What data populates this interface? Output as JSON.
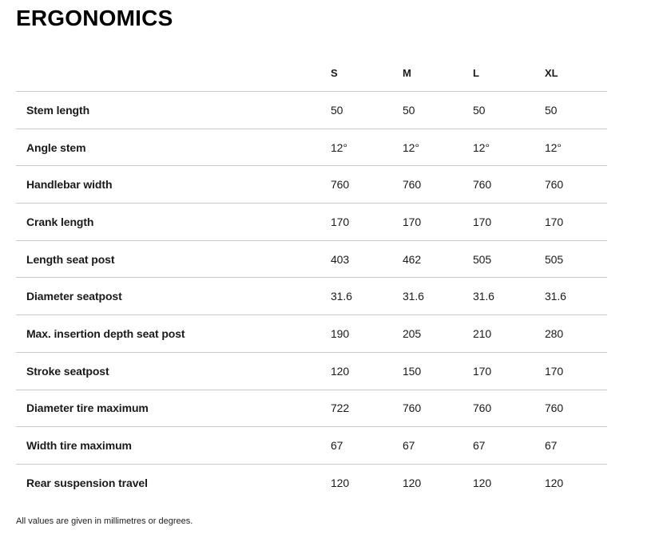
{
  "page": {
    "title": "ERGONOMICS",
    "footnote": "All values are given in millimetres or degrees."
  },
  "table": {
    "columns": [
      "S",
      "M",
      "L",
      "XL"
    ],
    "rows": [
      {
        "label": "Stem length",
        "values": [
          "50",
          "50",
          "50",
          "50"
        ]
      },
      {
        "label": "Angle stem",
        "values": [
          "12°",
          "12°",
          "12°",
          "12°"
        ]
      },
      {
        "label": "Handlebar width",
        "values": [
          "760",
          "760",
          "760",
          "760"
        ]
      },
      {
        "label": "Crank length",
        "values": [
          "170",
          "170",
          "170",
          "170"
        ]
      },
      {
        "label": "Length seat post",
        "values": [
          "403",
          "462",
          "505",
          "505"
        ]
      },
      {
        "label": "Diameter seatpost",
        "values": [
          "31.6",
          "31.6",
          "31.6",
          "31.6"
        ]
      },
      {
        "label": "Max. insertion depth seat post",
        "values": [
          "190",
          "205",
          "210",
          "280"
        ]
      },
      {
        "label": "Stroke seatpost",
        "values": [
          "120",
          "150",
          "170",
          "170"
        ]
      },
      {
        "label": "Diameter tire maximum",
        "values": [
          "722",
          "760",
          "760",
          "760"
        ]
      },
      {
        "label": "Width tire maximum",
        "values": [
          "67",
          "67",
          "67",
          "67"
        ]
      },
      {
        "label": "Rear suspension travel",
        "values": [
          "120",
          "120",
          "120",
          "120"
        ]
      }
    ]
  }
}
